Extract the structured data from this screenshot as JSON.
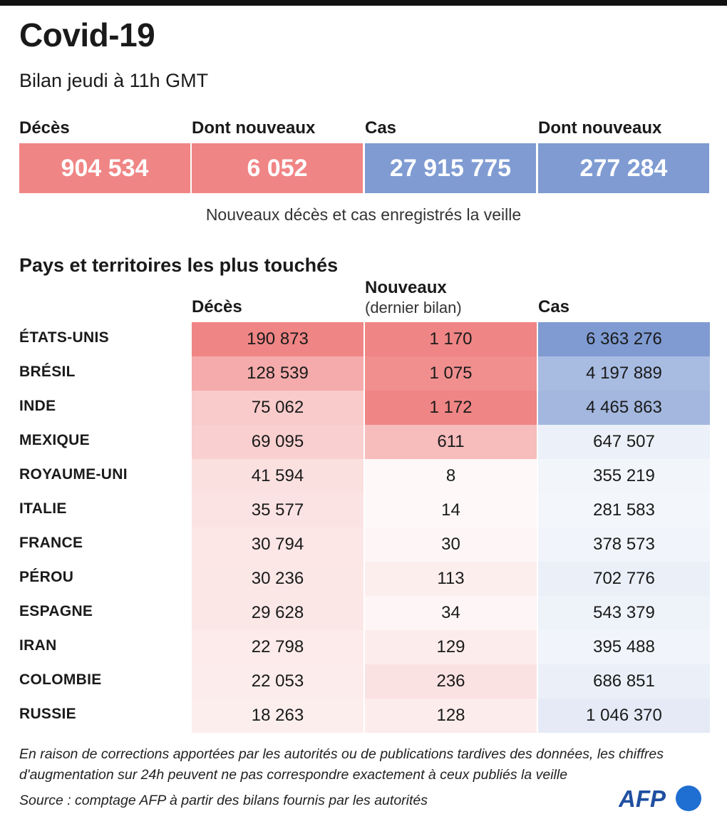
{
  "header": {
    "title": "Covid-19",
    "subtitle": "Bilan jeudi à 11h GMT"
  },
  "totals": {
    "labels": [
      "Décès",
      "Dont nouveaux",
      "Cas",
      "Dont nouveaux"
    ],
    "values": [
      "904 534",
      "6 052",
      "27 915 775",
      "277 284"
    ],
    "note": "Nouveaux décès et cas enregistrés la veille"
  },
  "table": {
    "section_title": "Pays et territoires les plus touchés",
    "col_deaths": "Décès",
    "col_new": "Nouveaux",
    "col_new_sub": "(dernier bilan)",
    "col_cases": "Cas"
  },
  "colors": {
    "deaths_accent": "#f08585",
    "cases_accent": "#7f9bd2"
  },
  "chart_data": {
    "type": "table",
    "columns": [
      "Décès",
      "Nouveaux (dernier bilan)",
      "Cas"
    ],
    "rows": [
      {
        "country": "ÉTATS-UNIS",
        "deaths": 190873,
        "new": 1170,
        "cases": 6363276,
        "deaths_label": "190 873",
        "new_label": "1 170",
        "cases_label": "6 363 276"
      },
      {
        "country": "BRÉSIL",
        "deaths": 128539,
        "new": 1075,
        "cases": 4197889,
        "deaths_label": "128 539",
        "new_label": "1 075",
        "cases_label": "4 197 889"
      },
      {
        "country": "INDE",
        "deaths": 75062,
        "new": 1172,
        "cases": 4465863,
        "deaths_label": "75 062",
        "new_label": "1 172",
        "cases_label": "4 465 863"
      },
      {
        "country": "MEXIQUE",
        "deaths": 69095,
        "new": 611,
        "cases": 647507,
        "deaths_label": "69 095",
        "new_label": "611",
        "cases_label": "647 507"
      },
      {
        "country": "ROYAUME-UNI",
        "deaths": 41594,
        "new": 8,
        "cases": 355219,
        "deaths_label": "41 594",
        "new_label": "8",
        "cases_label": "355 219"
      },
      {
        "country": "ITALIE",
        "deaths": 35577,
        "new": 14,
        "cases": 281583,
        "deaths_label": "35 577",
        "new_label": "14",
        "cases_label": "281 583"
      },
      {
        "country": "FRANCE",
        "deaths": 30794,
        "new": 30,
        "cases": 378573,
        "deaths_label": "30 794",
        "new_label": "30",
        "cases_label": "378 573"
      },
      {
        "country": "PÉROU",
        "deaths": 30236,
        "new": 113,
        "cases": 702776,
        "deaths_label": "30 236",
        "new_label": "113",
        "cases_label": "702 776"
      },
      {
        "country": "ESPAGNE",
        "deaths": 29628,
        "new": 34,
        "cases": 543379,
        "deaths_label": "29 628",
        "new_label": "34",
        "cases_label": "543 379"
      },
      {
        "country": "IRAN",
        "deaths": 22798,
        "new": 129,
        "cases": 395488,
        "deaths_label": "22 798",
        "new_label": "129",
        "cases_label": "395 488"
      },
      {
        "country": "COLOMBIE",
        "deaths": 22053,
        "new": 236,
        "cases": 686851,
        "deaths_label": "22 053",
        "new_label": "236",
        "cases_label": "686 851"
      },
      {
        "country": "RUSSIE",
        "deaths": 18263,
        "new": 128,
        "cases": 1046370,
        "deaths_label": "18 263",
        "new_label": "128",
        "cases_label": "1 046 370"
      }
    ]
  },
  "footer": {
    "footnote": "En raison de corrections apportées par les autorités ou de publications tardives des données, les chiffres d'augmentation sur 24h peuvent ne pas correspondre exactement à ceux publiés la veille",
    "source": "Source : comptage AFP à partir des bilans fournis par les autorités",
    "logo_text": "AFP"
  }
}
